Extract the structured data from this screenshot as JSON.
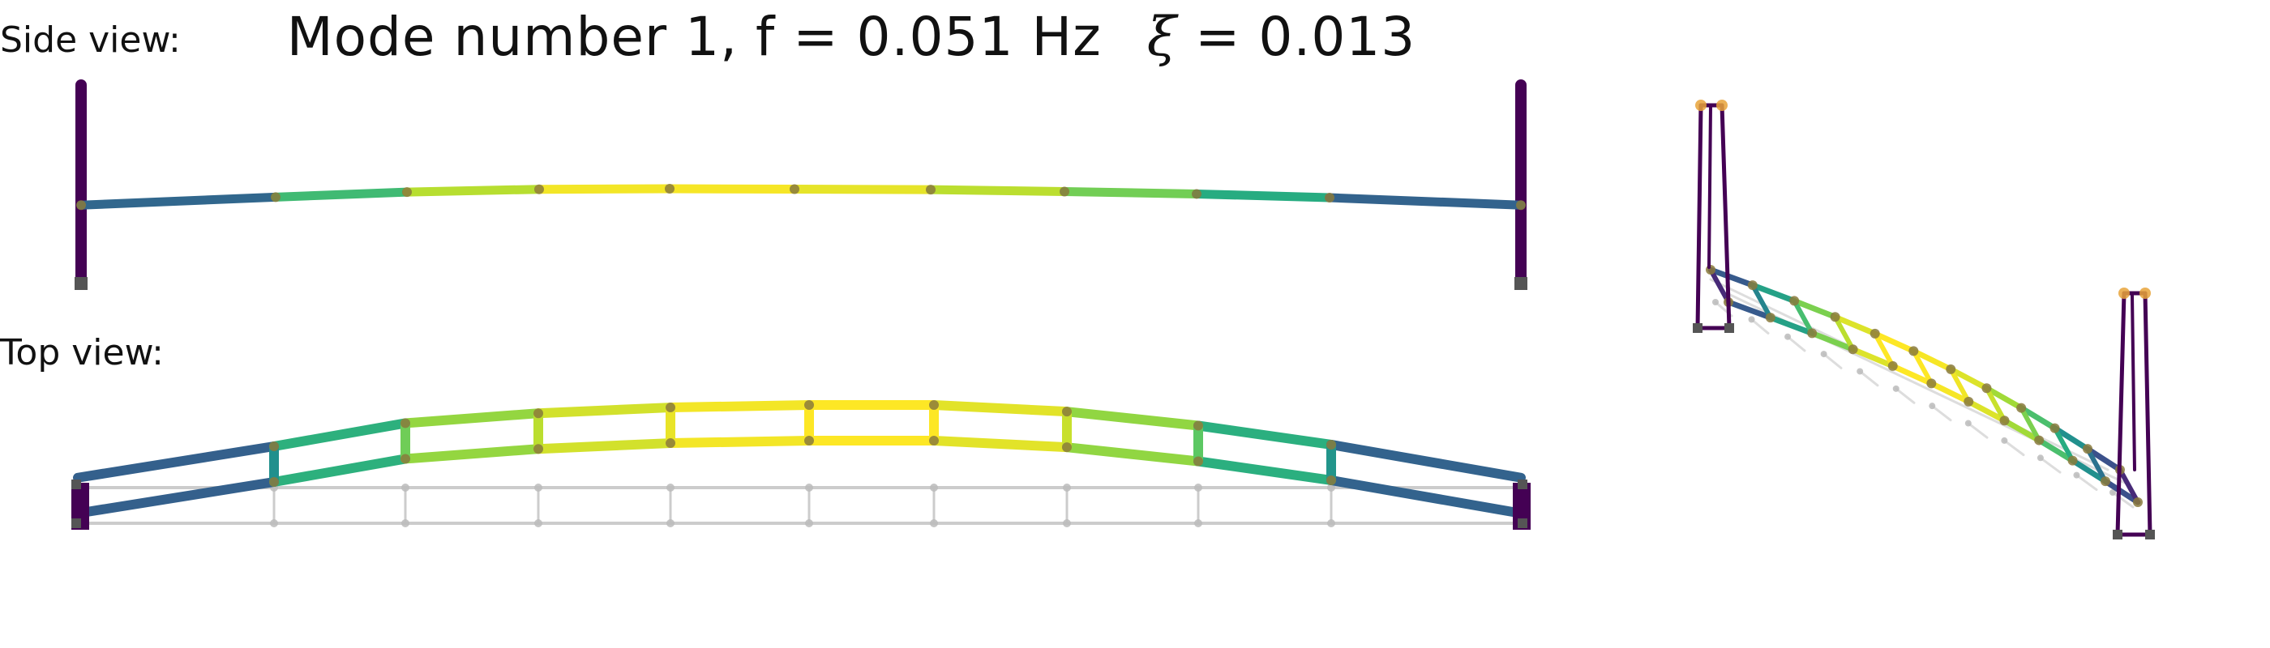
{
  "title": {
    "mode_text": "Mode number 1, f = 0.051 Hz",
    "damping_symbol": "ξ",
    "damping_text": "= 0.013"
  },
  "labels": {
    "side_view": "Side view:",
    "top_view": "Top view:"
  },
  "colormap": "viridis",
  "colors": {
    "tower": "#440154",
    "support_marker": "#555555",
    "node_marker": "#8a7a3c",
    "tower_top_marker": "#e8a33a",
    "undeformed": "#cccccc"
  },
  "model": {
    "deck_nodes": 12,
    "towers": 2,
    "node_amplitudes": [
      0.12,
      0.55,
      0.82,
      0.97,
      1.0,
      0.98,
      0.95,
      0.85,
      0.72,
      0.52,
      0.18,
      0.12
    ]
  }
}
